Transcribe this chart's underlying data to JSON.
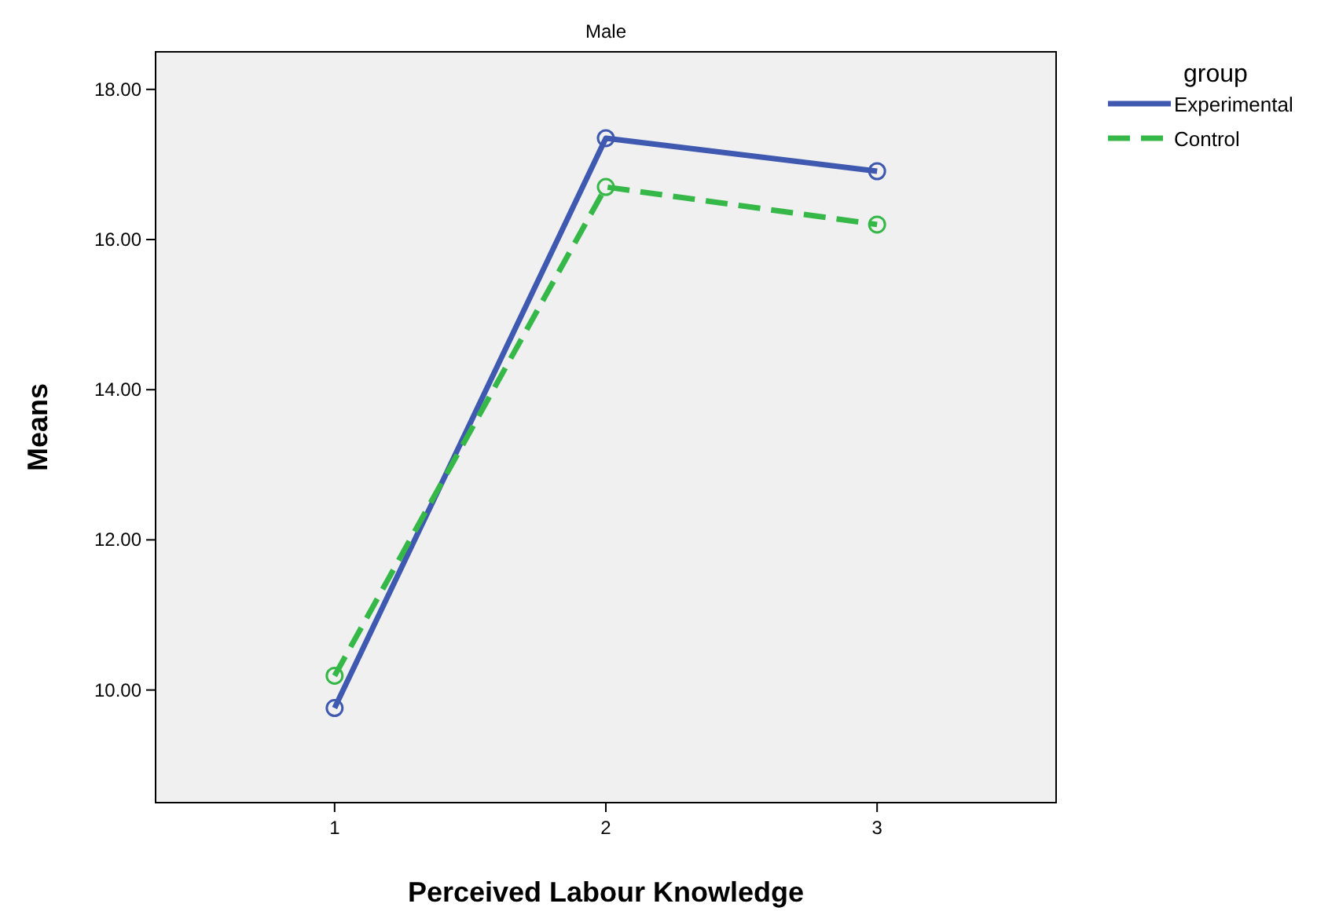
{
  "chart_data": {
    "type": "line",
    "title": "Male",
    "xlabel": "Perceived Labour Knowledge",
    "ylabel": "Means",
    "legend_title": "group",
    "x": [
      1,
      2,
      3
    ],
    "series": [
      {
        "name": "Experimental",
        "color": "#3f58b0",
        "values": [
          9.76,
          17.35,
          16.91
        ],
        "line_style": "solid"
      },
      {
        "name": "Control",
        "color": "#35b847",
        "values": [
          10.19,
          16.7,
          16.2
        ],
        "line_style": "dashed"
      }
    ],
    "xlim": [
      0.34,
      3.66
    ],
    "xticks": [
      1,
      2,
      3
    ],
    "ylim": [
      8.5,
      18.5
    ],
    "yticks": [
      {
        "value": 10,
        "label": "10.00"
      },
      {
        "value": 12,
        "label": "12.00"
      },
      {
        "value": 14,
        "label": "14.00"
      },
      {
        "value": 16,
        "label": "16.00"
      },
      {
        "value": 18,
        "label": "18.00"
      }
    ],
    "marker": "circle",
    "grid": false,
    "legend": "top right"
  }
}
